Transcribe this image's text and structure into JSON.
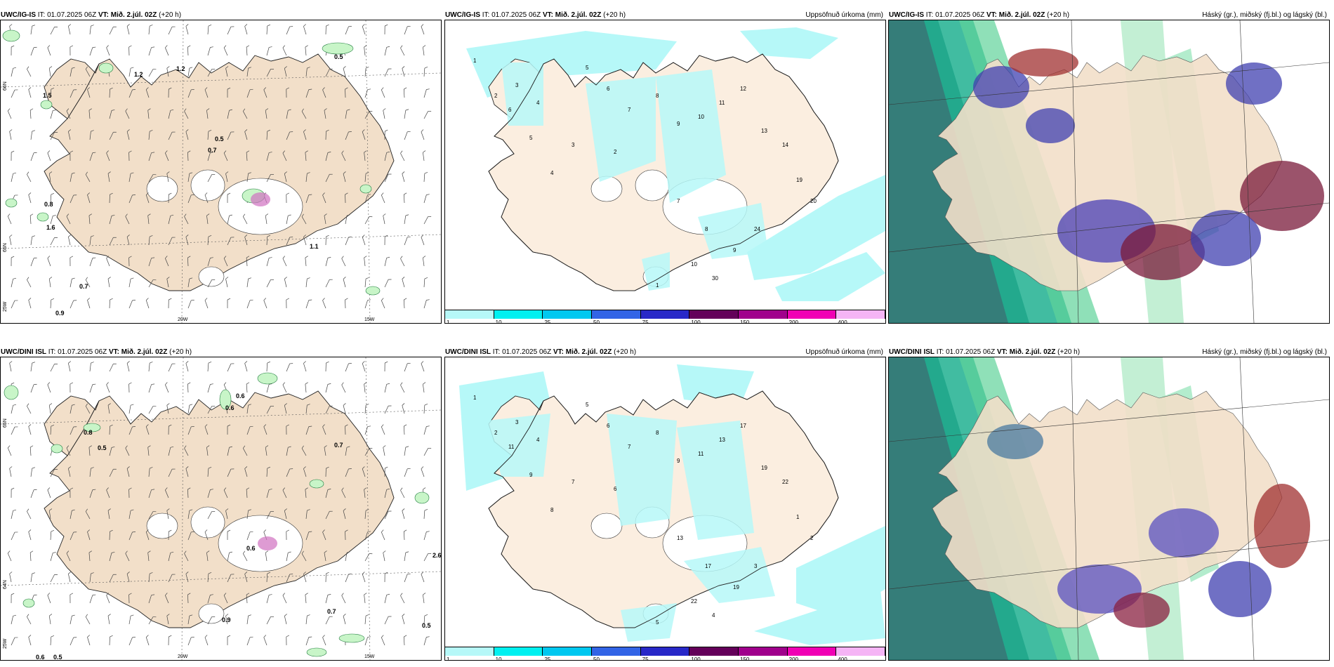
{
  "panels": [
    {
      "id": "p1",
      "model": "UWC/IG-IS",
      "it": "IT: 01.07.2025 06Z",
      "vt_label": "VT:",
      "vt": "Mið. 2.júl. 02Z",
      "lead": "(+20 h)",
      "right": "",
      "kind": "wind"
    },
    {
      "id": "p2",
      "model": "UWC/IG-IS",
      "it": "IT: 01.07.2025 06Z",
      "vt_label": "VT:",
      "vt": "Mið. 2.júl. 02Z",
      "lead": "(+20 h)",
      "right": "Uppsöfnuð úrkoma (mm)",
      "kind": "precip"
    },
    {
      "id": "p3",
      "model": "UWC/IG-IS",
      "it": "IT: 01.07.2025 06Z",
      "vt_label": "VT:",
      "vt": "Mið. 2.júl. 02Z",
      "lead": "(+20 h)",
      "right": "Háský (gr.), miðský (fj.bl.) og lágský (bl.)",
      "kind": "cloud"
    },
    {
      "id": "p4",
      "model": "UWC/DINI ISL",
      "it": "IT: 01.07.2025 06Z",
      "vt_label": "VT:",
      "vt": "Mið. 2.júl. 02Z",
      "lead": "(+20 h)",
      "right": "",
      "kind": "wind"
    },
    {
      "id": "p5",
      "model": "UWC/DINI ISL",
      "it": "IT: 01.07.2025 06Z",
      "vt_label": "VT:",
      "vt": "Mið. 2.júl. 02Z",
      "lead": "(+20 h)",
      "right": "Uppsöfnuð úrkoma (mm)",
      "kind": "precip"
    },
    {
      "id": "p6",
      "model": "UWC/DINI ISL",
      "it": "IT: 01.07.2025 06Z",
      "vt_label": "VT:",
      "vt": "Mið. 2.júl. 02Z",
      "lead": "(+20 h)",
      "right": "Háský (gr.), miðský (fj.bl.) og lágský (bl.)",
      "kind": "cloud"
    }
  ],
  "colorbar": {
    "ticks": [
      "1",
      "10",
      "25",
      "50",
      "75",
      "100",
      "150",
      "200",
      "400"
    ],
    "colors": [
      "#b6f8f8",
      "#00f0f0",
      "#00c8f0",
      "#3264e6",
      "#2828c8",
      "#64005a",
      "#a0008c",
      "#f000b4",
      "#f5b4f5"
    ]
  },
  "geo_labels": {
    "lat66": "66N",
    "lat65": "65N",
    "lat64": "64N",
    "lon20": "20W",
    "lon15": "15W",
    "lon25": "25W"
  },
  "wind_values_top": [
    "0.5",
    "1.2",
    "1.2",
    "1.5",
    "0.5",
    "0.7",
    "0.8",
    "1.6",
    "1.1",
    "0.7",
    "0.9"
  ],
  "wind_values_bottom": [
    "0.6",
    "0.6",
    "0.8",
    "0.5",
    "0.7",
    "0.6",
    "2.6",
    "0.9",
    "0.7",
    "0.5",
    "0.6",
    "0.5"
  ],
  "precip_values_top": [
    "1",
    "2",
    "3",
    "4",
    "5",
    "6",
    "7",
    "8",
    "9",
    "10",
    "11",
    "12",
    "13",
    "14",
    "19",
    "20",
    "24",
    "30"
  ],
  "precip_values_bottom": [
    "1",
    "2",
    "3",
    "4",
    "5",
    "6",
    "7",
    "8",
    "9",
    "11",
    "13",
    "17",
    "19",
    "22"
  ],
  "colors": {
    "land": "#f2dfc9",
    "sea": "#ffffff",
    "precip_light": "#b6f8f8",
    "green_light": "#c8f5c8",
    "green_dark": "#1e7a3c"
  }
}
